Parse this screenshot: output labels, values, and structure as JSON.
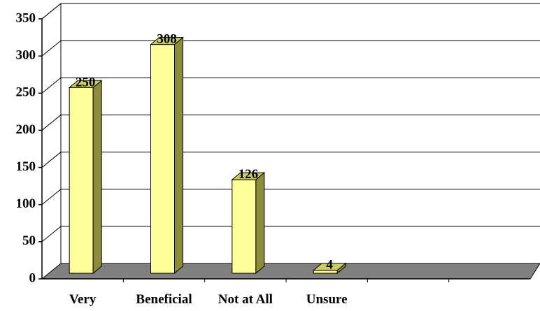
{
  "chart_data": {
    "type": "bar",
    "style": "3d-column",
    "categories": [
      "Very",
      "Beneficial",
      "Not at All",
      "Unsure"
    ],
    "values": [
      250,
      308,
      126,
      4
    ],
    "data_labels": [
      "250",
      "308",
      "126",
      "4"
    ],
    "ylim": [
      0,
      350
    ],
    "yticks": [
      0,
      50,
      100,
      150,
      200,
      250,
      300,
      350
    ],
    "ytick_labels": [
      "0",
      "50",
      "100",
      "150",
      "200",
      "250",
      "300",
      "350"
    ],
    "grid": true,
    "legend": "none",
    "title": "",
    "xlabel": "",
    "ylabel": "",
    "colors": {
      "bar_front": "#ffff99",
      "bar_side": "#8c8c3c",
      "bar_top": "#cccc66",
      "floor": "#808080",
      "grid": "#000000",
      "background": "#ffffff"
    }
  }
}
